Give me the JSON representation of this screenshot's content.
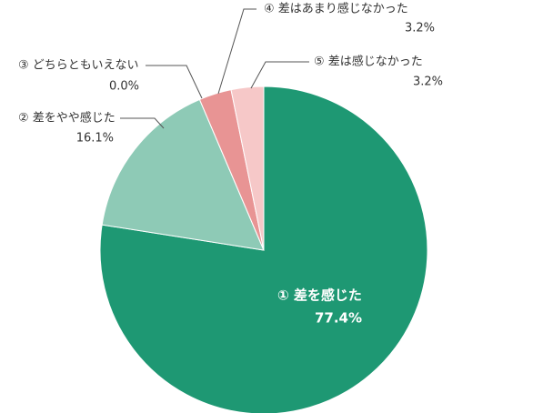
{
  "chart_data": {
    "type": "pie",
    "categories": [
      "① 差を感じた",
      "② 差をやや感じた",
      "③ どちらともいえない",
      "④ 差はあまり感じなかった",
      "⑤ 差は感じなかった"
    ],
    "values": [
      77.4,
      16.1,
      0.0,
      3.2,
      3.2
    ],
    "value_labels": [
      "77.4%",
      "16.1%",
      "0.0%",
      "3.2%",
      "3.2%"
    ],
    "colors": [
      "#1e9873",
      "#8ecab6",
      "#b9dccf",
      "#e89494",
      "#f6c8c8"
    ]
  }
}
